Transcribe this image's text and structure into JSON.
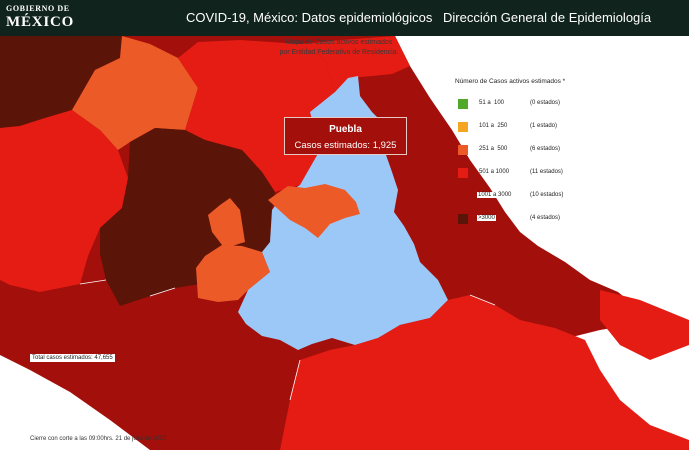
{
  "header": {
    "logo_line1": "GOBIERNO DE",
    "logo_line2": "MÉXICO",
    "title": "COVID-19, México: Datos epidemiológicos",
    "agency": "Dirección General de Epidemiología"
  },
  "map": {
    "subtitle_line1": "Mapa de Casos activos estimados",
    "subtitle_line2": "por Entidad Federativa de Residencia.",
    "highlighted_state": "Puebla",
    "highlight_color": "#9cc8f8"
  },
  "tooltip": {
    "state": "Puebla",
    "label": "Casos estimados:",
    "value": "1,925"
  },
  "legend": {
    "title": "Número de Casos activos estimados *",
    "items": [
      {
        "range": "51 a  100",
        "count": "(0 estados)",
        "color": "#52a82a"
      },
      {
        "range": "101 a  250",
        "count": "(1 estado)",
        "color": "#f4a521"
      },
      {
        "range": "251 a  500",
        "count": "(6 estados)",
        "color": "#ec5a27"
      },
      {
        "range": "501 a 1000",
        "count": "(11 estados)",
        "color": "#e41c14"
      },
      {
        "range": "1001 a 3000",
        "count": "(10 estados)",
        "color": "#a30f0a"
      },
      {
        "range": ">3000",
        "count": "(4 estados)",
        "color": "#5a1408"
      }
    ]
  },
  "total": "Total casos estimados: 47,655",
  "footer": "Cierre con corte a las 09:00hrs. 21 de julio de 2020"
}
